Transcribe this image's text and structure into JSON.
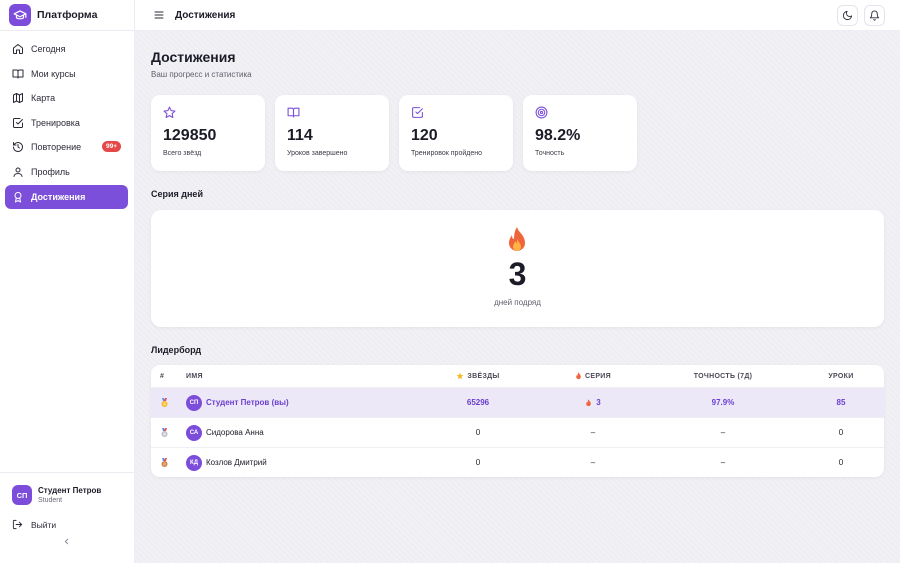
{
  "app": {
    "name": "Платформа"
  },
  "sidebar": {
    "items": [
      {
        "label": "Сегодня",
        "icon": "home-icon"
      },
      {
        "label": "Мои курсы",
        "icon": "book-icon"
      },
      {
        "label": "Карта",
        "icon": "map-icon"
      },
      {
        "label": "Тренировка",
        "icon": "checkbox-icon"
      },
      {
        "label": "Повторение",
        "icon": "history-icon",
        "badge": "99+"
      },
      {
        "label": "Профиль",
        "icon": "user-icon"
      },
      {
        "label": "Достижения",
        "icon": "award-icon",
        "active": true
      }
    ],
    "user": {
      "initials": "СП",
      "name": "Студент Петров",
      "role": "Student"
    },
    "logout_label": "Выйти"
  },
  "header": {
    "title": "Достижения"
  },
  "page": {
    "title": "Достижения",
    "subtitle": "Ваш прогресс и статистика"
  },
  "stats": [
    {
      "value": "129850",
      "label": "Всего звёзд",
      "icon": "star-icon"
    },
    {
      "value": "114",
      "label": "Уроков завершено",
      "icon": "book-open-icon"
    },
    {
      "value": "120",
      "label": "Тренировок пройдено",
      "icon": "checkbox-icon"
    },
    {
      "value": "98.2%",
      "label": "Точность",
      "icon": "target-icon"
    }
  ],
  "streak": {
    "section_title": "Серия дней",
    "value": "3",
    "label": "дней подряд"
  },
  "leaderboard": {
    "section_title": "Лидерборд",
    "columns": {
      "rank": "#",
      "name": "ИМЯ",
      "stars": "ЗВЁЗДЫ",
      "streak": "СЕРИЯ",
      "accuracy": "ТОЧНОСТЬ (7Д)",
      "lessons": "УРОКИ"
    },
    "rows": [
      {
        "medal": "gold",
        "initials": "СП",
        "name": "Студент Петров (вы)",
        "stars": "65296",
        "streak": "3",
        "accuracy": "97.9%",
        "lessons": "85",
        "is_me": true
      },
      {
        "medal": "silver",
        "initials": "СА",
        "name": "Сидорова Анна",
        "stars": "0",
        "streak": "–",
        "accuracy": "–",
        "lessons": "0"
      },
      {
        "medal": "bronze",
        "initials": "КД",
        "name": "Козлов Дмитрий",
        "stars": "0",
        "streak": "–",
        "accuracy": "–",
        "lessons": "0"
      }
    ]
  },
  "colors": {
    "accent": "#7b4fd9",
    "badge": "#e54848",
    "highlight_row": "#ede8f8"
  }
}
